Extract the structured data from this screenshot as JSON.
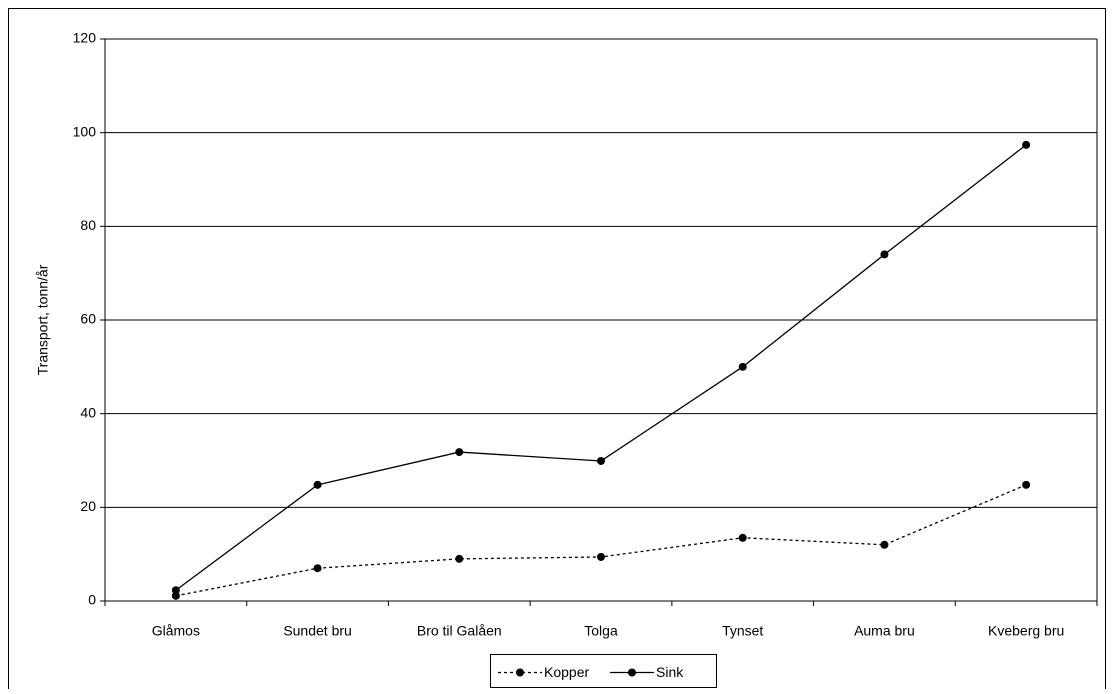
{
  "chart_data": {
    "type": "line",
    "y_label": "Transport, tonn/år",
    "categories": [
      "Glåmos",
      "Sundet bru",
      "Bro til Galåen",
      "Tolga",
      "Tynset",
      "Auma bru",
      "Kveberg bru"
    ],
    "series": [
      {
        "name": "Kopper",
        "color": "#000000",
        "dash": "dotted",
        "values": [
          1.1,
          7,
          9,
          9.4,
          13.5,
          12,
          24.8
        ]
      },
      {
        "name": "Sink",
        "color": "#000000",
        "dash": "solid",
        "values": [
          2.3,
          24.8,
          31.8,
          29.9,
          50,
          74,
          97.4
        ]
      }
    ],
    "ylim": [
      0,
      120
    ],
    "yticks": [
      0,
      20,
      40,
      60,
      80,
      100,
      120
    ],
    "grid": true,
    "legend": "bottom"
  }
}
